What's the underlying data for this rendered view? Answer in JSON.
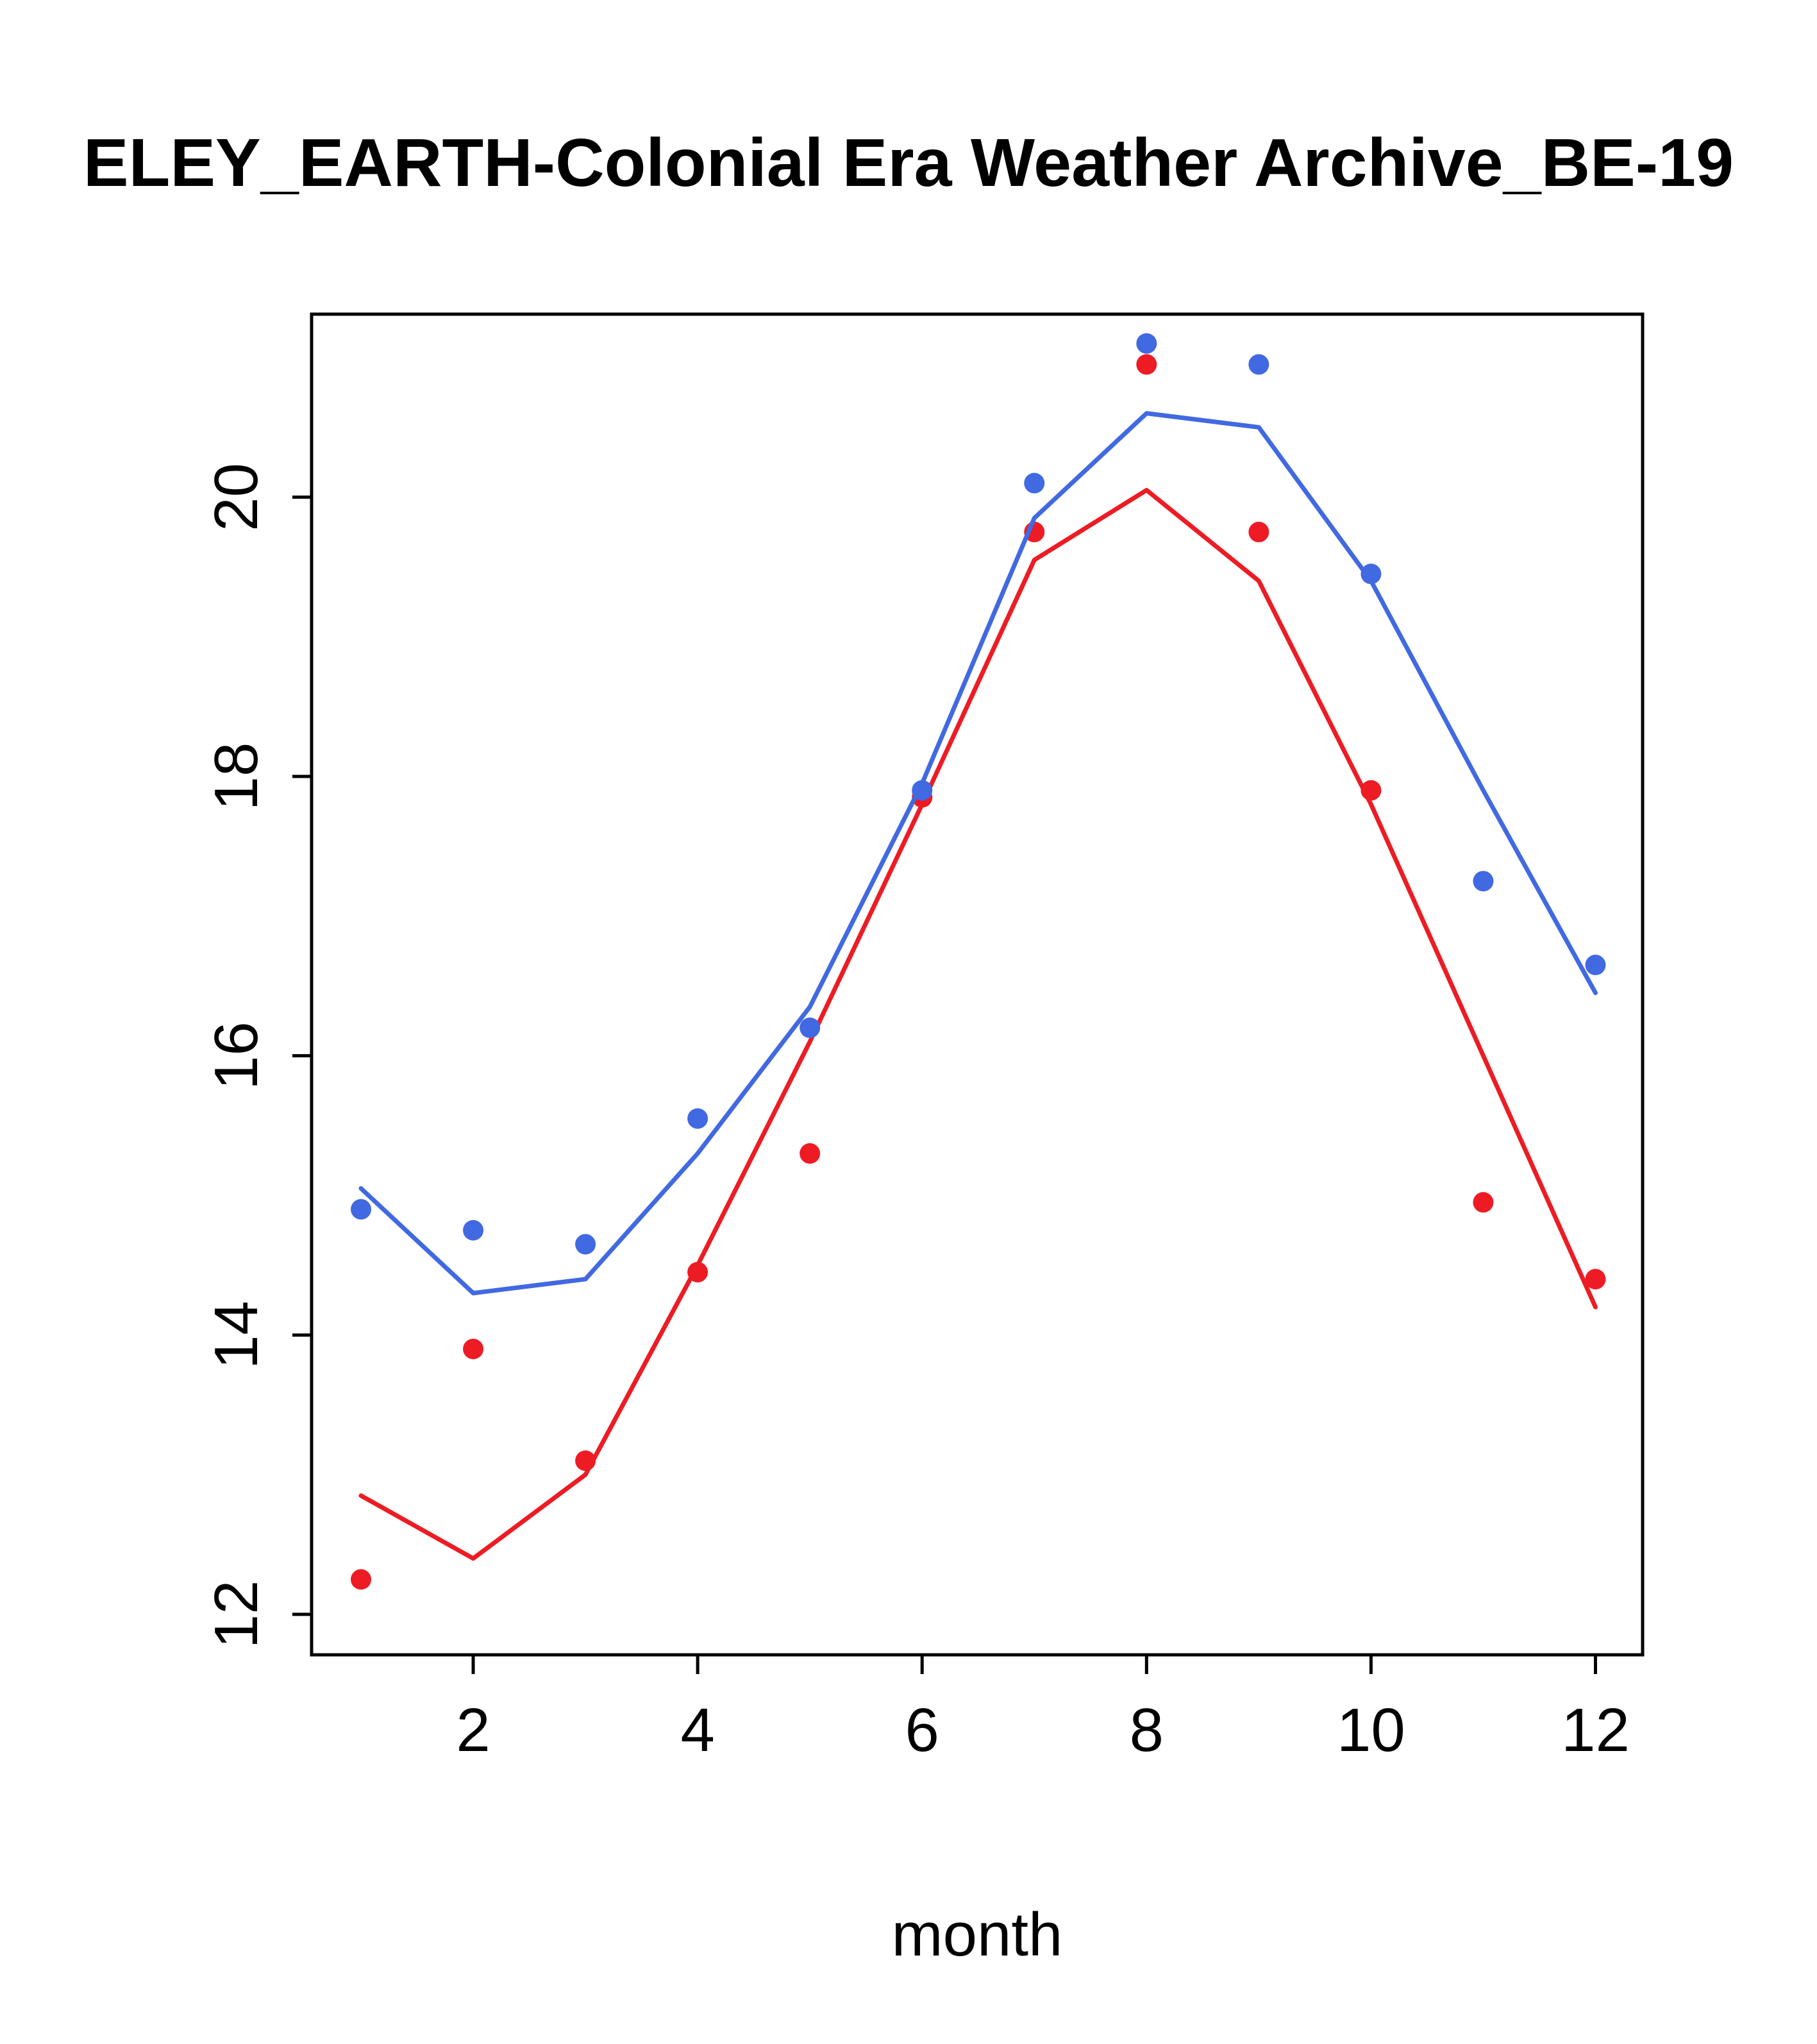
{
  "chart_data": {
    "type": "line",
    "title": "ELEY_EARTH-Colonial Era Weather Archive_BE-19",
    "xlabel": "month",
    "ylabel": "",
    "x": [
      1,
      2,
      3,
      4,
      5,
      6,
      7,
      8,
      9,
      10,
      11,
      12
    ],
    "xticks": [
      2,
      4,
      6,
      8,
      10,
      12
    ],
    "yticks": [
      12,
      14,
      16,
      18,
      20
    ],
    "xlim": [
      0.56,
      12.42
    ],
    "ylim": [
      11.71,
      21.31
    ],
    "grid": false,
    "legend": "none",
    "colors": {
      "blue_series": "#4169e1",
      "red_series": "#ed1c24",
      "axis": "#000000",
      "background": "#ffffff"
    },
    "series": [
      {
        "name": "red-line-smoothed",
        "style": "line",
        "color": "#ed1c24",
        "values": [
          12.85,
          12.4,
          13.0,
          14.5,
          16.1,
          17.8,
          19.55,
          20.05,
          19.4,
          17.8,
          16.0,
          14.2
        ]
      },
      {
        "name": "red-points-observed",
        "style": "points",
        "color": "#ed1c24",
        "values": [
          12.25,
          13.9,
          13.1,
          14.45,
          15.3,
          17.85,
          19.75,
          20.95,
          19.75,
          17.9,
          14.95,
          14.4
        ]
      },
      {
        "name": "blue-line-smoothed",
        "style": "line",
        "color": "#4169e1",
        "values": [
          15.05,
          14.3,
          14.4,
          15.3,
          16.35,
          17.95,
          19.85,
          20.6,
          20.5,
          19.4,
          17.9,
          16.45
        ]
      },
      {
        "name": "blue-points-observed",
        "style": "points",
        "color": "#4169e1",
        "values": [
          14.9,
          14.75,
          14.65,
          15.55,
          16.2,
          17.9,
          20.1,
          21.1,
          20.95,
          19.45,
          17.25,
          16.65
        ]
      }
    ]
  }
}
